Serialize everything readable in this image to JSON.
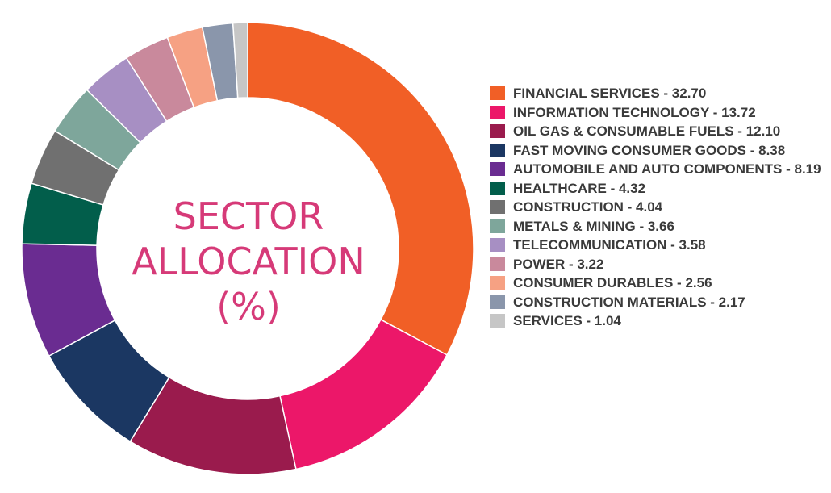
{
  "chart_data": {
    "type": "pie",
    "title": "SECTOR ALLOCATION (%)",
    "title_lines": [
      "SECTOR",
      "ALLOCATION",
      "(%)"
    ],
    "series": [
      {
        "label": "FINANCIAL SERVICES - 32.70",
        "value": 32.7,
        "color": "#f15f26"
      },
      {
        "label": "INFORMATION TECHNOLOGY - 13.72",
        "value": 13.72,
        "color": "#ec1769"
      },
      {
        "label": "OIL GAS & CONSUMABLE FUELS - 12.10",
        "value": 12.1,
        "color": "#9a1b4d"
      },
      {
        "label": "FAST MOVING CONSUMER GOODS - 8.38",
        "value": 8.38,
        "color": "#1b3762"
      },
      {
        "label": "AUTOMOBILE AND AUTO COMPONENTS - 8.19",
        "value": 8.19,
        "color": "#6a2c91"
      },
      {
        "label": "HEALTHCARE - 4.32",
        "value": 4.32,
        "color": "#025e4b"
      },
      {
        "label": "CONSTRUCTION - 4.04",
        "value": 4.04,
        "color": "#707070"
      },
      {
        "label": "METALS & MINING - 3.66",
        "value": 3.66,
        "color": "#7ea69b"
      },
      {
        "label": "TELECOMMUNICATION - 3.58",
        "value": 3.58,
        "color": "#a78fc3"
      },
      {
        "label": "POWER - 3.22",
        "value": 3.22,
        "color": "#c9899c"
      },
      {
        "label": "CONSUMER DURABLES - 2.56",
        "value": 2.56,
        "color": "#f6a183"
      },
      {
        "label": "CONSTRUCTION MATERIALS - 2.17",
        "value": 2.17,
        "color": "#8a96ab"
      },
      {
        "label": "SERVICES - 1.04",
        "value": 1.04,
        "color": "#c6c6c6"
      }
    ],
    "legend_position": "right",
    "donut": true
  }
}
